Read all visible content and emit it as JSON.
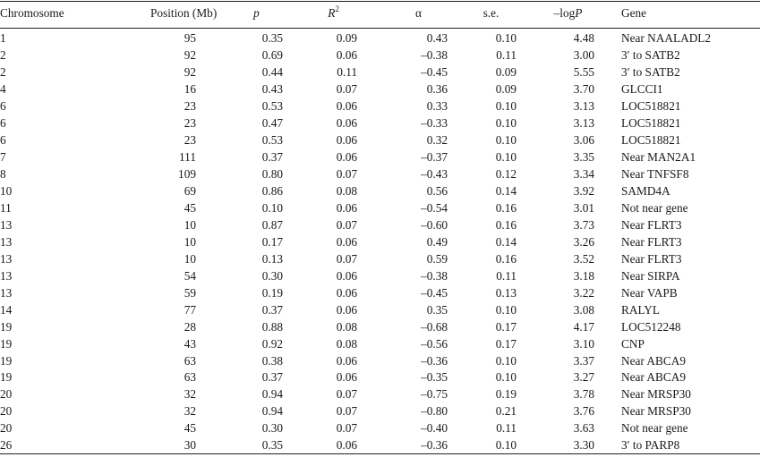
{
  "headers": {
    "chromosome": "Chromosome",
    "position": "Position (Mb)",
    "p": "p",
    "r2_base": "R",
    "r2_sup": "2",
    "alpha": "α",
    "se": "s.e.",
    "logp_prefix": "–log",
    "logp_var": "P",
    "gene": "Gene"
  },
  "rows": [
    {
      "chr": "1",
      "pos": "95",
      "p": "0.35",
      "r2": "0.09",
      "alpha": "0.43",
      "se": "0.10",
      "logp": "4.48",
      "gene": "Near NAALADL2"
    },
    {
      "chr": "2",
      "pos": "92",
      "p": "0.69",
      "r2": "0.06",
      "alpha": "–0.38",
      "se": "0.11",
      "logp": "3.00",
      "gene": "3′ to SATB2"
    },
    {
      "chr": "2",
      "pos": "92",
      "p": "0.44",
      "r2": "0.11",
      "alpha": "–0.45",
      "se": "0.09",
      "logp": "5.55",
      "gene": "3′ to SATB2"
    },
    {
      "chr": "4",
      "pos": "16",
      "p": "0.43",
      "r2": "0.07",
      "alpha": "0.36",
      "se": "0.09",
      "logp": "3.70",
      "gene": "GLCCI1"
    },
    {
      "chr": "6",
      "pos": "23",
      "p": "0.53",
      "r2": "0.06",
      "alpha": "0.33",
      "se": "0.10",
      "logp": "3.13",
      "gene": "LOC518821"
    },
    {
      "chr": "6",
      "pos": "23",
      "p": "0.47",
      "r2": "0.06",
      "alpha": "–0.33",
      "se": "0.10",
      "logp": "3.13",
      "gene": "LOC518821"
    },
    {
      "chr": "6",
      "pos": "23",
      "p": "0.53",
      "r2": "0.06",
      "alpha": "0.32",
      "se": "0.10",
      "logp": "3.06",
      "gene": "LOC518821"
    },
    {
      "chr": "7",
      "pos": "111",
      "p": "0.37",
      "r2": "0.06",
      "alpha": "–0.37",
      "se": "0.10",
      "logp": "3.35",
      "gene": "Near MAN2A1"
    },
    {
      "chr": "8",
      "pos": "109",
      "p": "0.80",
      "r2": "0.07",
      "alpha": "–0.43",
      "se": "0.12",
      "logp": "3.34",
      "gene": "Near TNFSF8"
    },
    {
      "chr": "10",
      "pos": "69",
      "p": "0.86",
      "r2": "0.08",
      "alpha": "0.56",
      "se": "0.14",
      "logp": "3.92",
      "gene": "SAMD4A"
    },
    {
      "chr": "11",
      "pos": "45",
      "p": "0.10",
      "r2": "0.06",
      "alpha": "–0.54",
      "se": "0.16",
      "logp": "3.01",
      "gene": "Not near gene"
    },
    {
      "chr": "13",
      "pos": "10",
      "p": "0.87",
      "r2": "0.07",
      "alpha": "–0.60",
      "se": "0.16",
      "logp": "3.73",
      "gene": "Near FLRT3"
    },
    {
      "chr": "13",
      "pos": "10",
      "p": "0.17",
      "r2": "0.06",
      "alpha": "0.49",
      "se": "0.14",
      "logp": "3.26",
      "gene": "Near FLRT3"
    },
    {
      "chr": "13",
      "pos": "10",
      "p": "0.13",
      "r2": "0.07",
      "alpha": "0.59",
      "se": "0.16",
      "logp": "3.52",
      "gene": "Near FLRT3"
    },
    {
      "chr": "13",
      "pos": "54",
      "p": "0.30",
      "r2": "0.06",
      "alpha": "–0.38",
      "se": "0.11",
      "logp": "3.18",
      "gene": "Near SIRPA"
    },
    {
      "chr": "13",
      "pos": "59",
      "p": "0.19",
      "r2": "0.06",
      "alpha": "–0.45",
      "se": "0.13",
      "logp": "3.22",
      "gene": "Near VAPB"
    },
    {
      "chr": "14",
      "pos": "77",
      "p": "0.37",
      "r2": "0.06",
      "alpha": "0.35",
      "se": "0.10",
      "logp": "3.08",
      "gene": "RALYL"
    },
    {
      "chr": "19",
      "pos": "28",
      "p": "0.88",
      "r2": "0.08",
      "alpha": "–0.68",
      "se": "0.17",
      "logp": "4.17",
      "gene": "LOC512248"
    },
    {
      "chr": "19",
      "pos": "43",
      "p": "0.92",
      "r2": "0.08",
      "alpha": "–0.56",
      "se": "0.17",
      "logp": "3.10",
      "gene": "CNP"
    },
    {
      "chr": "19",
      "pos": "63",
      "p": "0.38",
      "r2": "0.06",
      "alpha": "–0.36",
      "se": "0.10",
      "logp": "3.37",
      "gene": "Near ABCA9"
    },
    {
      "chr": "19",
      "pos": "63",
      "p": "0.37",
      "r2": "0.06",
      "alpha": "–0.35",
      "se": "0.10",
      "logp": "3.27",
      "gene": "Near ABCA9"
    },
    {
      "chr": "20",
      "pos": "32",
      "p": "0.94",
      "r2": "0.07",
      "alpha": "–0.75",
      "se": "0.19",
      "logp": "3.78",
      "gene": "Near MRSP30"
    },
    {
      "chr": "20",
      "pos": "32",
      "p": "0.94",
      "r2": "0.07",
      "alpha": "–0.80",
      "se": "0.21",
      "logp": "3.76",
      "gene": "Near MRSP30"
    },
    {
      "chr": "20",
      "pos": "45",
      "p": "0.30",
      "r2": "0.07",
      "alpha": "–0.40",
      "se": "0.11",
      "logp": "3.63",
      "gene": "Not near gene"
    },
    {
      "chr": "26",
      "pos": "30",
      "p": "0.35",
      "r2": "0.06",
      "alpha": "–0.36",
      "se": "0.10",
      "logp": "3.30",
      "gene": "3′ to PARP8"
    }
  ]
}
